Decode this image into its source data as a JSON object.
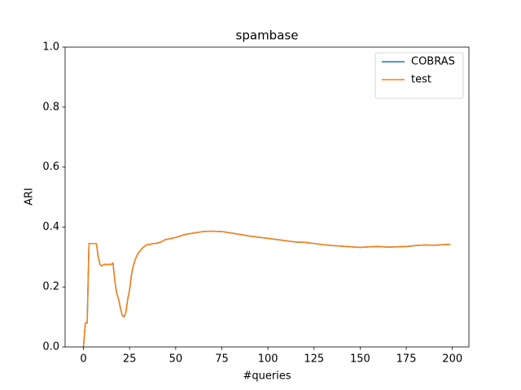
{
  "chart_data": {
    "type": "line",
    "title": "spambase",
    "xlabel": "#queries",
    "ylabel": "ARI",
    "x": [
      0,
      1,
      2,
      3,
      4,
      5,
      6,
      7,
      8,
      9,
      10,
      11,
      12,
      13,
      14,
      15,
      16,
      17,
      18,
      19,
      20,
      21,
      22,
      23,
      24,
      25,
      26,
      27,
      28,
      29,
      30,
      32,
      34,
      36,
      38,
      40,
      42,
      44,
      46,
      50,
      55,
      60,
      65,
      70,
      75,
      80,
      85,
      90,
      95,
      100,
      105,
      110,
      115,
      120,
      125,
      130,
      135,
      140,
      145,
      150,
      155,
      160,
      165,
      170,
      175,
      180,
      185,
      190,
      195,
      199
    ],
    "series": [
      {
        "name": "COBRAS",
        "color": "#1f77b4",
        "values": [
          0.0,
          0.08,
          0.08,
          0.345,
          0.345,
          0.345,
          0.345,
          0.345,
          0.3,
          0.275,
          0.27,
          0.275,
          0.275,
          0.275,
          0.275,
          0.275,
          0.28,
          0.22,
          0.18,
          0.16,
          0.13,
          0.105,
          0.1,
          0.115,
          0.16,
          0.19,
          0.24,
          0.27,
          0.29,
          0.305,
          0.315,
          0.33,
          0.34,
          0.342,
          0.345,
          0.346,
          0.35,
          0.357,
          0.36,
          0.365,
          0.375,
          0.38,
          0.385,
          0.386,
          0.385,
          0.38,
          0.375,
          0.37,
          0.366,
          0.362,
          0.358,
          0.354,
          0.35,
          0.349,
          0.345,
          0.341,
          0.338,
          0.336,
          0.334,
          0.332,
          0.334,
          0.335,
          0.333,
          0.334,
          0.335,
          0.338,
          0.34,
          0.339,
          0.341,
          0.342
        ]
      },
      {
        "name": "test",
        "color": "#ff7f0e",
        "values": [
          0.0,
          0.08,
          0.08,
          0.345,
          0.345,
          0.345,
          0.345,
          0.345,
          0.3,
          0.275,
          0.27,
          0.275,
          0.275,
          0.275,
          0.275,
          0.275,
          0.28,
          0.22,
          0.18,
          0.16,
          0.13,
          0.105,
          0.1,
          0.115,
          0.16,
          0.19,
          0.24,
          0.27,
          0.29,
          0.305,
          0.315,
          0.33,
          0.34,
          0.342,
          0.345,
          0.346,
          0.35,
          0.357,
          0.36,
          0.365,
          0.375,
          0.38,
          0.385,
          0.386,
          0.385,
          0.38,
          0.375,
          0.37,
          0.366,
          0.362,
          0.358,
          0.354,
          0.35,
          0.349,
          0.345,
          0.341,
          0.338,
          0.336,
          0.334,
          0.332,
          0.334,
          0.335,
          0.333,
          0.334,
          0.335,
          0.338,
          0.34,
          0.339,
          0.341,
          0.342
        ]
      }
    ],
    "xlim": [
      -9.95,
      208.95
    ],
    "xticks": [
      0,
      25,
      50,
      75,
      100,
      125,
      150,
      175,
      200
    ],
    "ylim": [
      0,
      1
    ],
    "yticks": [
      {
        "value": 0,
        "label": "0.0"
      },
      {
        "value": 0.2,
        "label": "0.2"
      },
      {
        "value": 0.4,
        "label": "0.4"
      },
      {
        "value": 0.6,
        "label": "0.6"
      },
      {
        "value": 0.8,
        "label": "0.8"
      },
      {
        "value": 1,
        "label": "1.0"
      }
    ],
    "legend": "upper right"
  }
}
